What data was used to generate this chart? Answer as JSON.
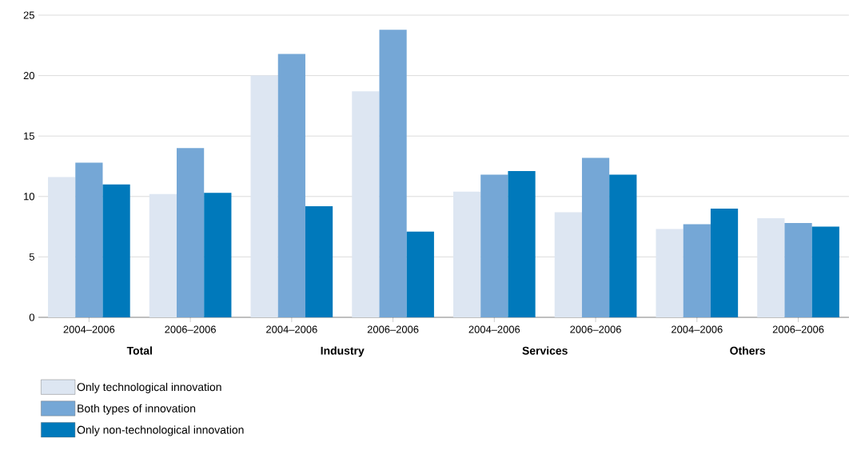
{
  "chart_data": {
    "type": "bar",
    "categories": [
      "2004–2006",
      "2006–2006",
      "2004–2006",
      "2006–2006",
      "2004–2006",
      "2006–2006",
      "2004–2006",
      "2006–2006"
    ],
    "series": [
      {
        "name": "Only technological innovation",
        "color": "#dde6f2",
        "values": [
          11.6,
          10.2,
          20.0,
          18.7,
          10.4,
          8.7,
          7.3,
          8.2
        ]
      },
      {
        "name": "Both types of innovation",
        "color": "#75a7d6",
        "values": [
          12.8,
          14.0,
          21.8,
          23.8,
          11.8,
          13.2,
          7.7,
          7.8
        ]
      },
      {
        "name": "Only non-technological innovation",
        "color": "#0079bb",
        "values": [
          11.0,
          10.3,
          9.2,
          7.1,
          12.1,
          11.8,
          9.0,
          7.5
        ]
      }
    ],
    "annotations": [
      "Total",
      "Industry",
      "Services",
      "Others"
    ],
    "ylim": [
      0,
      25
    ],
    "yticks": [
      0,
      5,
      10,
      15,
      20,
      25
    ],
    "grid": "y",
    "legend": "bottom"
  }
}
